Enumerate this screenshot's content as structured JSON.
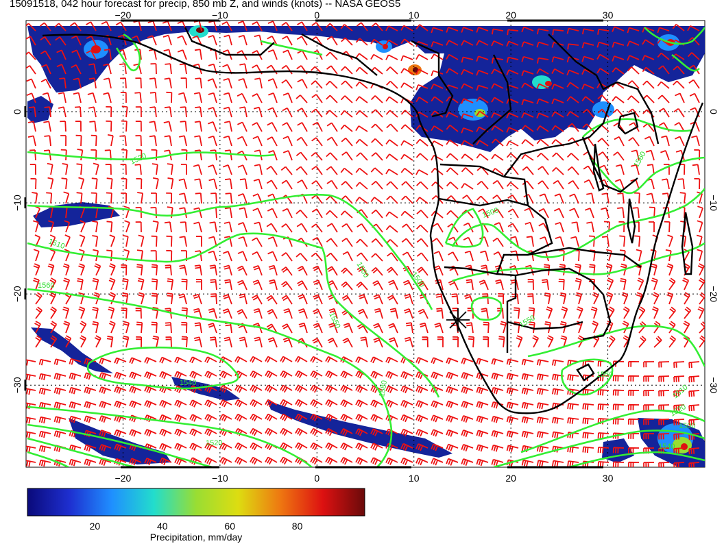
{
  "title": "15091518, 042 hour forecast for precip, 850 mb Z, and winds (knots) -- NASA GEOS5",
  "map": {
    "lon_range": [
      -30,
      40
    ],
    "lat_range": [
      -39,
      10
    ],
    "lon_ticks": [
      -20,
      -10,
      0,
      10,
      20,
      30
    ],
    "lat_ticks": [
      0,
      -10,
      -20,
      -30
    ],
    "lon_tick_labels": [
      "−20",
      "−10",
      "0",
      "10",
      "20",
      "30"
    ],
    "lat_tick_labels": [
      "0",
      "−10",
      "−20",
      "−30"
    ],
    "gridlines": "dotted",
    "land_outline_color": "#000000",
    "wind_barb_color": "#ee1111",
    "contour_color": "#33ee33"
  },
  "contours": {
    "variable": "850 mb geopotential height",
    "labels": [
      "1520",
      "1510",
      "1500",
      "1560",
      "1550",
      "1500",
      "1540",
      "1580",
      "1550",
      "1510",
      "1520",
      "1500",
      "1540",
      "1560",
      "1520",
      "1500",
      "1550"
    ]
  },
  "marker": {
    "symbol": "asterisk",
    "lon": 15,
    "lat": -24
  },
  "colorbar": {
    "label": "Precipitation, mm/day",
    "tick_labels": [
      "20",
      "40",
      "60",
      "80"
    ],
    "range": [
      0,
      100
    ],
    "colors": [
      "#0a0a7a",
      "#1e2fd0",
      "#1f8fff",
      "#22ddcc",
      "#99dd33",
      "#dddd11",
      "#ee7711",
      "#dd1111",
      "#6a0a0a"
    ]
  }
}
